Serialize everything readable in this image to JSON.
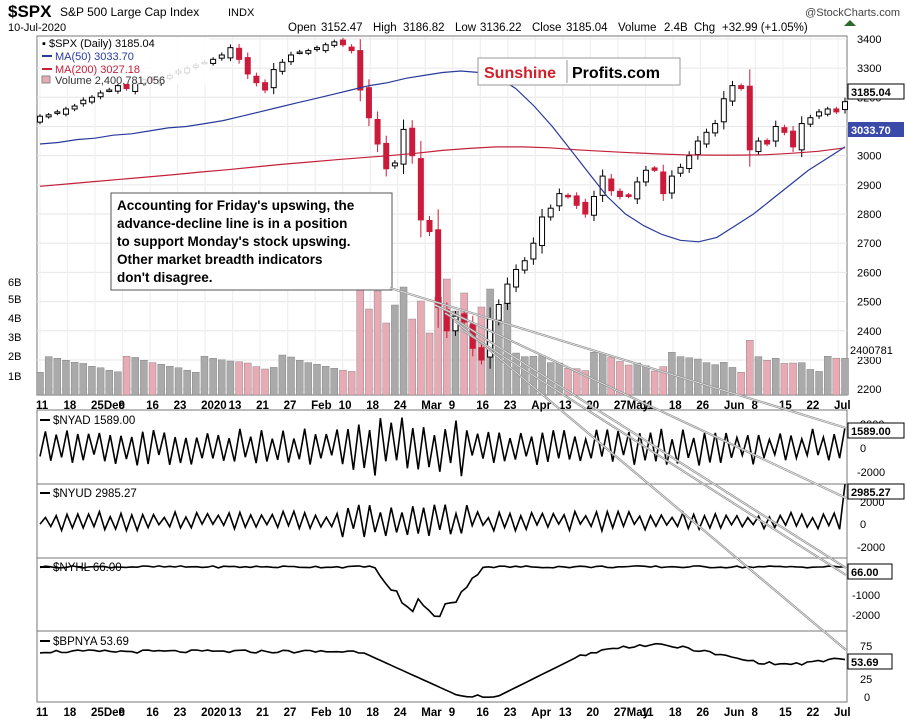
{
  "header": {
    "symbol": "$SPX",
    "name": "S&P 500 Large Cap Index",
    "exchange": "INDX",
    "date": "10-Jul-2020",
    "copyright": "@StockCharts.com",
    "open_label": "Open",
    "open": "3152.47",
    "high_label": "High",
    "high": "3186.82",
    "low_label": "Low",
    "low": "3136.22",
    "close_label": "Close",
    "close": "3185.04",
    "volume_label": "Volume",
    "volume": "2.4B",
    "chg_label": "Chg",
    "chg": "+32.99 (+1.05%)"
  },
  "legend": {
    "price": "$SPX (Daily) 3185.04",
    "ma50": "MA(50) 3033.70",
    "ma200": "MA(200) 3027.18",
    "volume": "Volume 2,400,781,056"
  },
  "logo": {
    "part1": "Sunshine",
    "part2": "Profits.com"
  },
  "annotation": {
    "lines": [
      "Accounting for Friday's upswing, the",
      "advance-decline line is in a position",
      "to support Monday's stock upswing.",
      "Other market breadth indicators",
      "don't disagree."
    ]
  },
  "colors": {
    "up": "#000000",
    "down": "#cc1a3a",
    "ma50": "#2a3a9c",
    "ma200": "#c4203a",
    "vol_down": "#e8aab4",
    "vol_up": "#aaaaaa",
    "logo_red": "#d0202a",
    "arrow": "#909090"
  },
  "chart_data": {
    "type": "line",
    "x_axis_labels": [
      "11",
      "18",
      "25Dec",
      "9",
      "16",
      "23",
      "2020",
      "13",
      "21",
      "27",
      "Feb",
      "10",
      "18",
      "24",
      "Mar",
      "9",
      "16",
      "23",
      "Apr",
      "13",
      "20",
      "27May",
      "11",
      "18",
      "26",
      "Jun",
      "8",
      "15",
      "22",
      "Jul"
    ],
    "panels": [
      {
        "name": "$SPX",
        "type": "candlestick",
        "yticks": [
          2200,
          2300,
          2400,
          2500,
          2600,
          2700,
          2800,
          2900,
          3000,
          3100,
          3200,
          3300,
          3400
        ],
        "ylim": [
          2180,
          3410
        ],
        "last_value": "3185.04",
        "ma50_value": "3033.70",
        "volume_value": "2400781",
        "volume_ticks": [
          "1B",
          "2B",
          "3B",
          "4B",
          "5B",
          "6B"
        ],
        "close_path": [
          3135,
          3140,
          3150,
          3160,
          3170,
          3190,
          3200,
          3215,
          3225,
          3240,
          3230,
          3250,
          3260,
          3255,
          3265,
          3275,
          3290,
          3300,
          3310,
          3320,
          3330,
          3345,
          3370,
          3330,
          3280,
          3250,
          3225,
          3295,
          3320,
          3345,
          3355,
          3360,
          3370,
          3380,
          3390,
          3380,
          3360,
          3225,
          3130,
          3040,
          2955,
          2975,
          3090,
          3000,
          2780,
          2740,
          2480,
          2400,
          2450,
          2430,
          2340,
          2300,
          2440,
          2490,
          2560,
          2610,
          2640,
          2700,
          2790,
          2820,
          2870,
          2860,
          2830,
          2800,
          2860,
          2930,
          2880,
          2860,
          2860,
          2910,
          2950,
          2950,
          2870,
          2930,
          2960,
          3000,
          3050,
          3080,
          3110,
          3195,
          3240,
          3230,
          3020,
          3050,
          3040,
          3100,
          3080,
          3030,
          3110,
          3130,
          3150,
          3160,
          3150,
          3185
        ],
        "ma50_path": [
          3040,
          3045,
          3055,
          3060,
          3070,
          3075,
          3085,
          3095,
          3100,
          3110,
          3120,
          3135,
          3150,
          3165,
          3180,
          3195,
          3210,
          3225,
          3240,
          3250,
          3265,
          3275,
          3285,
          3290,
          3285,
          3270,
          3230,
          3170,
          3100,
          3020,
          2940,
          2860,
          2800,
          2760,
          2730,
          2710,
          2705,
          2720,
          2760,
          2800,
          2850,
          2900,
          2950,
          2990,
          3030
        ],
        "ma200_path": [
          2895,
          2903,
          2911,
          2919,
          2927,
          2935,
          2944,
          2952,
          2961,
          2970,
          2978,
          2986,
          2993,
          3000,
          3008,
          3018,
          3025,
          3030,
          3030,
          3027,
          3020,
          3015,
          3010,
          3006,
          3003,
          3002,
          3002,
          3003,
          3008,
          3015,
          3027
        ]
      },
      {
        "name": "$NYAD",
        "last_value": "1589.00",
        "yticks": [
          "2000",
          "0",
          "-2000"
        ],
        "ylim": [
          -3000,
          3000
        ]
      },
      {
        "name": "$NYUD",
        "last_value": "2985.27",
        "yticks": [
          "2000",
          "0",
          "-2000"
        ],
        "ylim": [
          -3000,
          3000
        ]
      },
      {
        "name": "$NYHL",
        "last_value": "66.00",
        "yticks": [
          "0",
          "-1000",
          "-2000"
        ],
        "ylim": [
          -2400,
          400
        ]
      },
      {
        "name": "$BPNYA",
        "last_value": "53.69",
        "yticks": [
          "75",
          "50",
          "25",
          "0"
        ],
        "ylim": [
          0,
          90
        ]
      }
    ]
  }
}
